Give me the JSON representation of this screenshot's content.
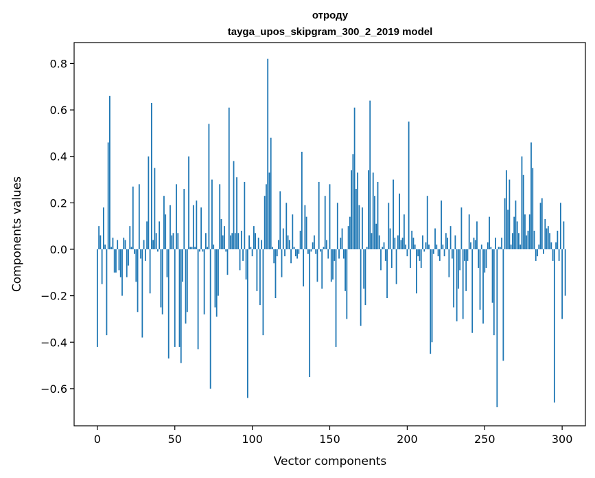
{
  "chart_data": {
    "type": "bar",
    "title_line1": "отроду",
    "title_line2": "tayga_upos_skipgram_300_2_2019 model",
    "xlabel": "Vector components",
    "ylabel": "Components values",
    "xlim": [
      -15,
      315
    ],
    "ylim": [
      -0.76,
      0.89
    ],
    "xticks": [
      0,
      50,
      100,
      150,
      200,
      250,
      300
    ],
    "xtick_labels": [
      "0",
      "50",
      "100",
      "150",
      "200",
      "250",
      "300"
    ],
    "yticks": [
      -0.6,
      -0.4,
      -0.2,
      0.0,
      0.2,
      0.4,
      0.6,
      0.8
    ],
    "ytick_labels": [
      "−0.6",
      "−0.4",
      "−0.2",
      "0.0",
      "0.2",
      "0.4",
      "0.6",
      "0.8"
    ],
    "bar_color": "#1f77b4",
    "values": [
      -0.42,
      0.1,
      0.06,
      -0.15,
      0.18,
      0.02,
      -0.37,
      0.46,
      0.66,
      0.01,
      0.05,
      -0.1,
      -0.1,
      0.04,
      -0.09,
      -0.12,
      -0.2,
      0.05,
      0.04,
      -0.12,
      -0.07,
      0.1,
      0.01,
      0.27,
      -0.02,
      -0.14,
      -0.27,
      0.28,
      -0.04,
      -0.38,
      0.04,
      -0.05,
      0.12,
      0.4,
      -0.19,
      0.63,
      0.04,
      0.35,
      0.07,
      -0.01,
      0.12,
      -0.25,
      -0.28,
      0.23,
      0.15,
      -0.12,
      -0.47,
      0.19,
      0.06,
      0.07,
      -0.42,
      0.28,
      0.07,
      -0.42,
      -0.49,
      -0.14,
      0.26,
      -0.32,
      -0.27,
      0.4,
      0.01,
      0.01,
      0.19,
      0.01,
      0.21,
      -0.43,
      -0.01,
      0.18,
      -0.01,
      -0.28,
      0.07,
      0.01,
      0.54,
      -0.6,
      0.3,
      0.02,
      -0.25,
      -0.29,
      -0.2,
      0.28,
      0.13,
      0.06,
      0.1,
      -0.01,
      -0.11,
      0.61,
      0.06,
      0.07,
      0.38,
      0.07,
      0.31,
      0.07,
      -0.09,
      0.08,
      -0.05,
      0.29,
      -0.13,
      -0.64,
      0.06,
      0.01,
      -0.03,
      0.1,
      0.07,
      -0.18,
      0.05,
      -0.24,
      0.04,
      -0.37,
      0.23,
      0.28,
      0.82,
      0.33,
      0.48,
      0.01,
      -0.06,
      -0.21,
      -0.03,
      0.04,
      0.25,
      -0.12,
      0.09,
      -0.03,
      0.2,
      0.06,
      0.04,
      -0.06,
      0.15,
      0.01,
      -0.03,
      -0.04,
      -0.02,
      0.08,
      0.42,
      -0.16,
      0.19,
      0.14,
      -0.02,
      -0.55,
      -0.01,
      0.03,
      0.06,
      -0.02,
      -0.14,
      0.29,
      -0.01,
      -0.17,
      0.01,
      0.23,
      0.04,
      -0.04,
      0.28,
      -0.14,
      -0.13,
      -0.05,
      -0.42,
      0.2,
      -0.04,
      0.05,
      0.09,
      -0.04,
      -0.18,
      -0.3,
      0.1,
      0.14,
      0.34,
      0.41,
      0.61,
      0.26,
      0.33,
      0.19,
      -0.33,
      0.18,
      -0.17,
      -0.24,
      0.01,
      0.34,
      0.64,
      0.07,
      0.33,
      0.23,
      0.11,
      0.29,
      0.06,
      -0.09,
      0.01,
      0.03,
      -0.05,
      -0.21,
      0.2,
      0.09,
      -0.08,
      0.3,
      0.05,
      -0.15,
      0.06,
      0.24,
      0.04,
      0.05,
      0.15,
      0.02,
      -0.03,
      0.55,
      -0.08,
      0.08,
      0.05,
      0.02,
      -0.19,
      -0.03,
      -0.05,
      -0.08,
      0.06,
      -0.01,
      0.03,
      0.23,
      0.02,
      -0.45,
      -0.4,
      -0.02,
      0.09,
      0.02,
      -0.03,
      -0.05,
      0.21,
      0.02,
      -0.03,
      0.07,
      0.05,
      -0.12,
      0.1,
      -0.04,
      -0.25,
      0.06,
      -0.31,
      -0.17,
      -0.09,
      0.18,
      -0.3,
      -0.05,
      -0.18,
      -0.05,
      0.15,
      0.03,
      -0.36,
      0.05,
      0.04,
      0.12,
      -0.08,
      -0.26,
      0.02,
      -0.32,
      -0.1,
      -0.08,
      0.03,
      0.14,
      0.01,
      -0.23,
      -0.37,
      0.05,
      -0.68,
      0.01,
      0.01,
      0.05,
      -0.48,
      0.22,
      0.34,
      0.17,
      0.3,
      0.02,
      0.07,
      0.14,
      0.21,
      0.12,
      0.07,
      0.02,
      0.4,
      0.32,
      0.15,
      0.06,
      0.08,
      0.15,
      0.46,
      0.35,
      0.08,
      -0.05,
      -0.03,
      0.02,
      0.2,
      0.22,
      -0.02,
      0.13,
      0.09,
      0.1,
      0.07,
      0.03,
      -0.05,
      -0.66,
      0.03,
      0.08,
      -0.05,
      0.2,
      -0.3,
      0.12,
      -0.2
    ]
  }
}
